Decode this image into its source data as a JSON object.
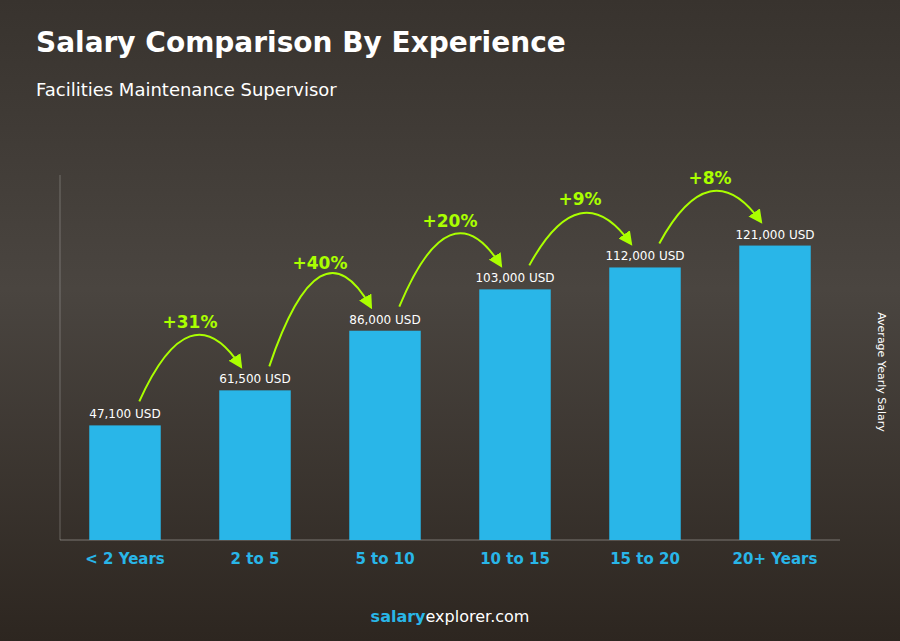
{
  "chart_data": {
    "type": "bar",
    "title": "Salary Comparison By Experience",
    "subtitle": "Facilities Maintenance Supervisor",
    "ylabel": "Average Yearly Salary",
    "categories": [
      "< 2 Years",
      "2 to 5",
      "5 to 10",
      "10 to 15",
      "15 to 20",
      "20+ Years"
    ],
    "values": [
      47100,
      61500,
      86000,
      103000,
      112000,
      121000
    ],
    "value_labels": [
      "47,100 USD",
      "61,500 USD",
      "86,000 USD",
      "103,000 USD",
      "112,000 USD",
      "121,000 USD"
    ],
    "data_labels": true,
    "color": "#29b6e8",
    "ylim": [
      0,
      150000
    ],
    "tick_labels": "x",
    "grid": false,
    "annotations": [
      {
        "text": "+31%",
        "color": "#aaff00"
      },
      {
        "text": "+40%",
        "color": "#aaff00"
      },
      {
        "text": "+20%",
        "color": "#aaff00"
      },
      {
        "text": "+9%",
        "color": "#aaff00"
      },
      {
        "text": "+8%",
        "color": "#aaff00"
      }
    ],
    "watermark": [
      "salary",
      "explorer.com"
    ]
  }
}
